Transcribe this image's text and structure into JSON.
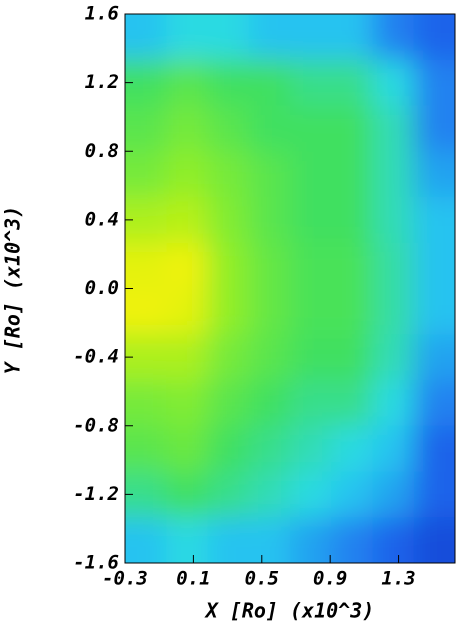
{
  "chart_data": {
    "type": "heatmap",
    "x_label": "X [Ro] (x10^3)",
    "y_label": "Y [Ro] (x10^3)",
    "xlim": [
      -0.3,
      1.63
    ],
    "ylim": [
      -1.6,
      1.6
    ],
    "xticks": [
      -0.3,
      0.1,
      0.5,
      0.9,
      1.3
    ],
    "yticks": [
      1.6,
      1.2,
      0.8,
      0.4,
      {
        "value": 0,
        "label": "0.0"
      },
      -0.4,
      -0.8,
      -1.2,
      -1.6
    ],
    "zlim": [
      0,
      1
    ],
    "colorscale": [
      "#0a1fb8",
      "#1e6cf0",
      "#29d9f0",
      "#3fe060",
      "#9af020",
      "#f6f20a",
      "#f89a10"
    ],
    "z": [
      [
        0.3,
        0.35,
        0.35,
        0.3,
        0.3,
        0.3,
        0.2,
        0.15
      ],
      [
        0.5,
        0.55,
        0.5,
        0.5,
        0.45,
        0.45,
        0.35,
        0.2
      ],
      [
        0.55,
        0.6,
        0.55,
        0.5,
        0.5,
        0.5,
        0.4,
        0.2
      ],
      [
        0.6,
        0.65,
        0.6,
        0.55,
        0.5,
        0.5,
        0.4,
        0.25
      ],
      [
        0.7,
        0.72,
        0.62,
        0.55,
        0.5,
        0.5,
        0.4,
        0.3
      ],
      [
        0.8,
        0.82,
        0.65,
        0.57,
        0.52,
        0.52,
        0.42,
        0.3
      ],
      [
        0.82,
        0.8,
        0.65,
        0.57,
        0.52,
        0.52,
        0.42,
        0.3
      ],
      [
        0.7,
        0.7,
        0.6,
        0.55,
        0.5,
        0.5,
        0.4,
        0.25
      ],
      [
        0.6,
        0.62,
        0.55,
        0.5,
        0.45,
        0.45,
        0.35,
        0.2
      ],
      [
        0.55,
        0.58,
        0.5,
        0.45,
        0.4,
        0.35,
        0.3,
        0.15
      ],
      [
        0.45,
        0.5,
        0.45,
        0.4,
        0.35,
        0.3,
        0.25,
        0.15
      ],
      [
        0.3,
        0.35,
        0.3,
        0.3,
        0.25,
        0.2,
        0.15,
        0.1
      ]
    ]
  }
}
